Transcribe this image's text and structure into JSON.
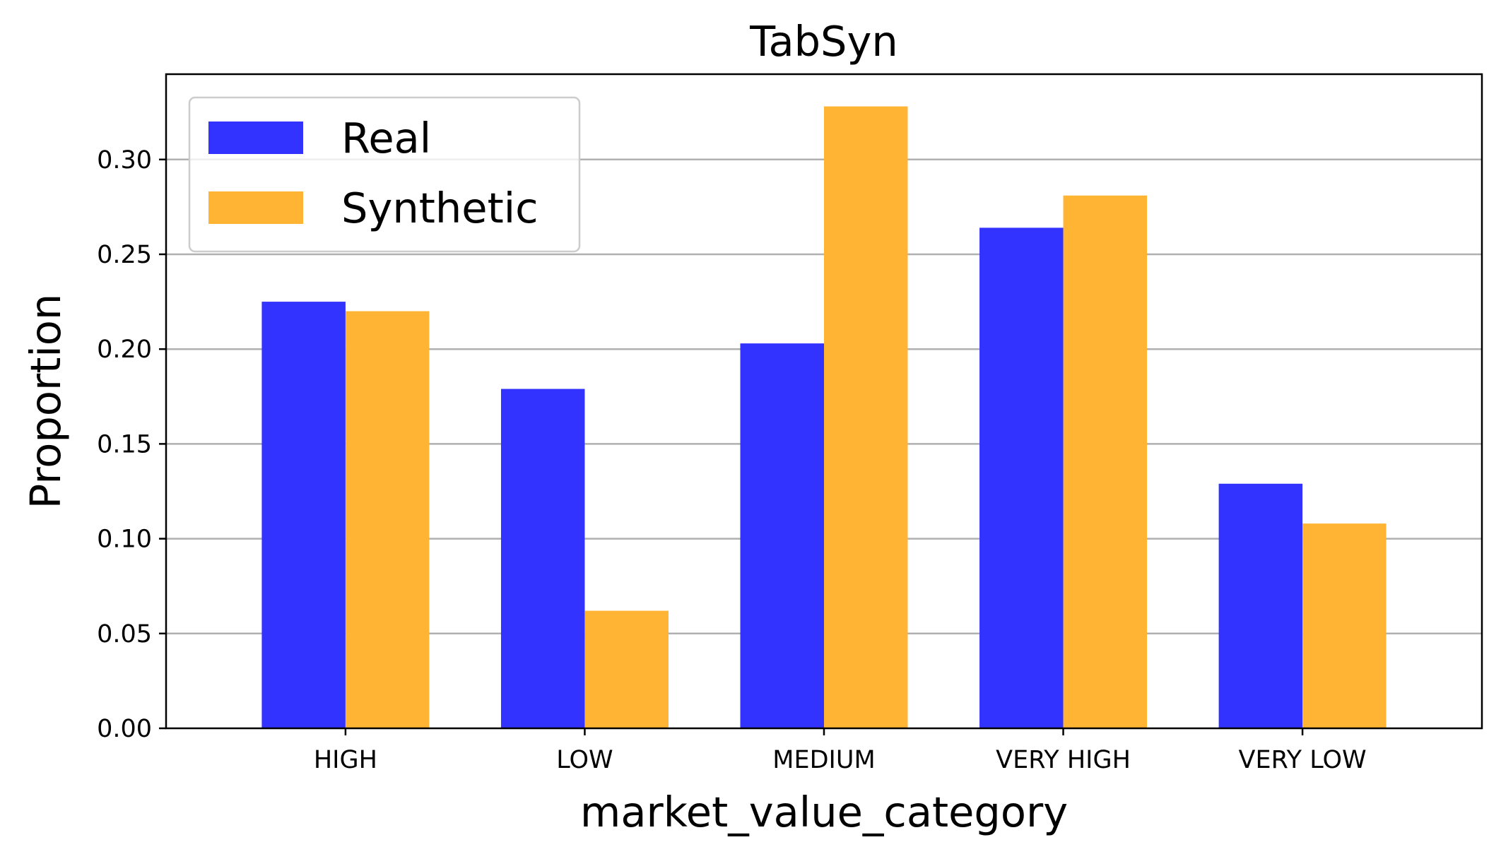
{
  "chart_data": {
    "type": "bar",
    "title": "TabSyn",
    "xlabel": "market_value_category",
    "ylabel": "Proportion",
    "categories": [
      "HIGH",
      "LOW",
      "MEDIUM",
      "VERY HIGH",
      "VERY LOW"
    ],
    "series": [
      {
        "name": "Real",
        "color": "#3333ff",
        "values": [
          0.225,
          0.179,
          0.203,
          0.264,
          0.129
        ]
      },
      {
        "name": "Synthetic",
        "color": "#ffb533",
        "values": [
          0.22,
          0.062,
          0.328,
          0.281,
          0.108
        ]
      }
    ],
    "ylim": [
      0,
      0.345
    ],
    "yticks": [
      "0.00",
      "0.05",
      "0.10",
      "0.15",
      "0.20",
      "0.25",
      "0.30"
    ],
    "grid": "y-major",
    "legend_position": "top-left"
  }
}
